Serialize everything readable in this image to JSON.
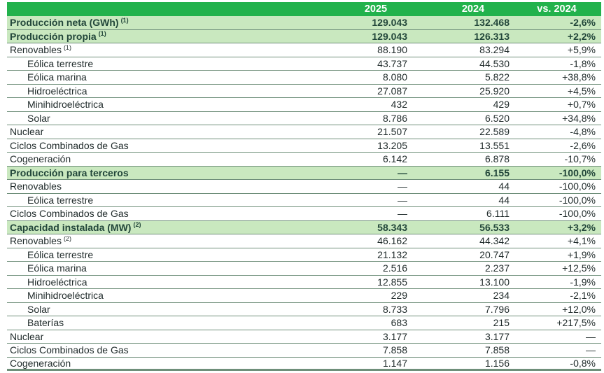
{
  "header": {
    "label": "",
    "col1": "2025",
    "col2": "2024",
    "col3": "vs. 2024"
  },
  "rows": [
    {
      "label": "Producción neta (GWh)",
      "sup": "(1)",
      "v2025": "129.043",
      "v2024": "132.468",
      "var": "-2,6%"
    },
    {
      "label": "Producción propia",
      "sup": "(1)",
      "v2025": "129.043",
      "v2024": "126.313",
      "var": "+2,2%"
    },
    {
      "label": "Renovables",
      "sup": "(1)",
      "v2025": "88.190",
      "v2024": "83.294",
      "var": "+5,9%"
    },
    {
      "label": "Eólica terrestre",
      "sup": "",
      "v2025": "43.737",
      "v2024": "44.530",
      "var": "-1,8%"
    },
    {
      "label": "Eólica marina",
      "sup": "",
      "v2025": "8.080",
      "v2024": "5.822",
      "var": "+38,8%"
    },
    {
      "label": "Hidroeléctrica",
      "sup": "",
      "v2025": "27.087",
      "v2024": "25.920",
      "var": "+4,5%"
    },
    {
      "label": "Minihidroeléctrica",
      "sup": "",
      "v2025": "432",
      "v2024": "429",
      "var": "+0,7%"
    },
    {
      "label": "Solar",
      "sup": "",
      "v2025": "8.786",
      "v2024": "6.520",
      "var": "+34,8%"
    },
    {
      "label": "Nuclear",
      "sup": "",
      "v2025": "21.507",
      "v2024": "22.589",
      "var": "-4,8%"
    },
    {
      "label": "Ciclos Combinados de Gas",
      "sup": "",
      "v2025": "13.205",
      "v2024": "13.551",
      "var": "-2,6%"
    },
    {
      "label": "Cogeneración",
      "sup": "",
      "v2025": "6.142",
      "v2024": "6.878",
      "var": "-10,7%"
    },
    {
      "label": "Producción para terceros",
      "sup": "",
      "v2025": "—",
      "v2024": "6.155",
      "var": "-100,0%"
    },
    {
      "label": "Renovables",
      "sup": "",
      "v2025": "—",
      "v2024": "44",
      "var": "-100,0%"
    },
    {
      "label": "Eólica terrestre",
      "sup": "",
      "v2025": "—",
      "v2024": "44",
      "var": "-100,0%"
    },
    {
      "label": "Ciclos Combinados de Gas",
      "sup": "",
      "v2025": "—",
      "v2024": "6.111",
      "var": "-100,0%"
    },
    {
      "label": "Capacidad instalada (MW)",
      "sup": "(2)",
      "v2025": "58.343",
      "v2024": "56.533",
      "var": "+3,2%"
    },
    {
      "label": "Renovables",
      "sup": "(2)",
      "v2025": "46.162",
      "v2024": "44.342",
      "var": "+4,1%"
    },
    {
      "label": "Eólica terrestre",
      "sup": "",
      "v2025": "21.132",
      "v2024": "20.747",
      "var": "+1,9%"
    },
    {
      "label": "Eólica marina",
      "sup": "",
      "v2025": "2.516",
      "v2024": "2.237",
      "var": "+12,5%"
    },
    {
      "label": "Hidroeléctrica",
      "sup": "",
      "v2025": "12.855",
      "v2024": "13.100",
      "var": "-1,9%"
    },
    {
      "label": "Minihidroeléctrica",
      "sup": "",
      "v2025": "229",
      "v2024": "234",
      "var": "-2,1%"
    },
    {
      "label": "Solar",
      "sup": "",
      "v2025": "8.733",
      "v2024": "7.796",
      "var": "+12,0%"
    },
    {
      "label": "Baterías",
      "sup": "",
      "v2025": "683",
      "v2024": "215",
      "var": "+217,5%"
    },
    {
      "label": "Nuclear",
      "sup": "",
      "v2025": "3.177",
      "v2024": "3.177",
      "var": "—"
    },
    {
      "label": "Ciclos Combinados de Gas",
      "sup": "",
      "v2025": "7.858",
      "v2024": "7.858",
      "var": "—"
    },
    {
      "label": "Cogeneración",
      "sup": "",
      "v2025": "1.147",
      "v2024": "1.156",
      "var": "-0,8%"
    }
  ]
}
